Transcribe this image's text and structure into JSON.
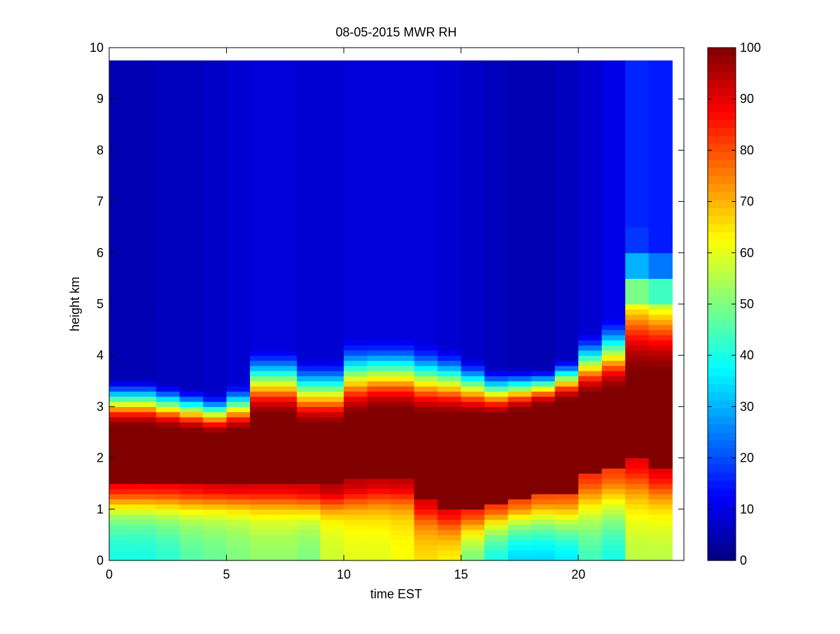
{
  "chart_data": {
    "type": "heatmap",
    "title": "08-05-2015 MWR RH",
    "xlabel": "time EST",
    "ylabel": "height km",
    "xlim": [
      0,
      24.5
    ],
    "ylim": [
      0,
      10
    ],
    "x_ticks": [
      0,
      5,
      10,
      15,
      20
    ],
    "y_ticks": [
      0,
      1,
      2,
      3,
      4,
      5,
      6,
      7,
      8,
      9,
      10
    ],
    "grid": false,
    "colormap": "jet",
    "colorbar": {
      "range": [
        0,
        100
      ],
      "ticks": [
        0,
        10,
        20,
        30,
        40,
        50,
        60,
        70,
        80,
        90,
        100
      ],
      "position": "right"
    },
    "time_hours": [
      0,
      1,
      2,
      3,
      4,
      5,
      6,
      7,
      8,
      9,
      10,
      11,
      12,
      13,
      14,
      15,
      16,
      17,
      18,
      19,
      20,
      21,
      22,
      23
    ],
    "height_km": [
      0.0,
      0.1,
      0.2,
      0.3,
      0.4,
      0.5,
      0.6,
      0.7,
      0.8,
      0.9,
      1.0,
      1.1,
      1.2,
      1.3,
      1.4,
      1.5,
      1.6,
      1.7,
      1.8,
      1.9,
      2.0,
      2.1,
      2.2,
      2.3,
      2.4,
      2.5,
      2.6,
      2.7,
      2.8,
      2.9,
      3.0,
      3.1,
      3.2,
      3.3,
      3.4,
      3.5,
      3.6,
      3.7,
      3.8,
      3.9,
      4.0,
      4.1,
      4.2,
      4.3,
      4.4,
      4.5,
      4.6,
      4.7,
      4.8,
      4.9,
      5.0,
      5.5,
      6.0,
      6.5,
      7.0,
      7.5,
      8.0,
      8.5,
      9.0,
      9.5
    ],
    "max_height_km": 9.75,
    "profiles": [
      {
        "time": 0,
        "surface": 40,
        "mid": 65,
        "lower_edge": 1.5,
        "upper_edge": 2.6,
        "decay_top": 3.6,
        "aloft": 5
      },
      {
        "time": 1,
        "surface": 40,
        "mid": 66,
        "lower_edge": 1.5,
        "upper_edge": 2.6,
        "decay_top": 3.6,
        "aloft": 5
      },
      {
        "time": 2,
        "surface": 42,
        "mid": 68,
        "lower_edge": 1.5,
        "upper_edge": 2.55,
        "decay_top": 3.5,
        "aloft": 6
      },
      {
        "time": 3,
        "surface": 46,
        "mid": 68,
        "lower_edge": 1.5,
        "upper_edge": 2.5,
        "decay_top": 3.4,
        "aloft": 6
      },
      {
        "time": 4,
        "surface": 48,
        "mid": 66,
        "lower_edge": 1.5,
        "upper_edge": 2.45,
        "decay_top": 3.3,
        "aloft": 7
      },
      {
        "time": 5,
        "surface": 50,
        "mid": 66,
        "lower_edge": 1.5,
        "upper_edge": 2.5,
        "decay_top": 3.5,
        "aloft": 8
      },
      {
        "time": 6,
        "surface": 52,
        "mid": 70,
        "lower_edge": 1.5,
        "upper_edge": 2.8,
        "decay_top": 4.2,
        "aloft": 9
      },
      {
        "time": 7,
        "surface": 52,
        "mid": 70,
        "lower_edge": 1.5,
        "upper_edge": 2.8,
        "decay_top": 4.2,
        "aloft": 9
      },
      {
        "time": 8,
        "surface": 50,
        "mid": 68,
        "lower_edge": 1.45,
        "upper_edge": 2.6,
        "decay_top": 4.0,
        "aloft": 8
      },
      {
        "time": 9,
        "surface": 58,
        "mid": 68,
        "lower_edge": 1.45,
        "upper_edge": 2.6,
        "decay_top": 4.0,
        "aloft": 8
      },
      {
        "time": 10,
        "surface": 60,
        "mid": 72,
        "lower_edge": 1.55,
        "upper_edge": 2.8,
        "decay_top": 4.4,
        "aloft": 9
      },
      {
        "time": 11,
        "surface": 60,
        "mid": 74,
        "lower_edge": 1.6,
        "upper_edge": 2.9,
        "decay_top": 4.4,
        "aloft": 9
      },
      {
        "time": 12,
        "surface": 62,
        "mid": 74,
        "lower_edge": 1.6,
        "upper_edge": 2.9,
        "decay_top": 4.4,
        "aloft": 9
      },
      {
        "time": 13,
        "surface": 66,
        "mid": 86,
        "lower_edge": 1.2,
        "upper_edge": 2.8,
        "decay_top": 4.3,
        "aloft": 9
      },
      {
        "time": 14,
        "surface": 64,
        "mid": 90,
        "lower_edge": 1.0,
        "upper_edge": 2.8,
        "decay_top": 4.2,
        "aloft": 8
      },
      {
        "time": 15,
        "surface": 50,
        "mid": 88,
        "lower_edge": 1.0,
        "upper_edge": 2.8,
        "decay_top": 4.0,
        "aloft": 7
      },
      {
        "time": 16,
        "surface": 40,
        "mid": 82,
        "lower_edge": 1.1,
        "upper_edge": 2.8,
        "decay_top": 3.8,
        "aloft": 6
      },
      {
        "time": 17,
        "surface": 34,
        "mid": 80,
        "lower_edge": 1.2,
        "upper_edge": 2.9,
        "decay_top": 3.8,
        "aloft": 5
      },
      {
        "time": 18,
        "surface": 34,
        "mid": 82,
        "lower_edge": 1.3,
        "upper_edge": 3.0,
        "decay_top": 3.8,
        "aloft": 5
      },
      {
        "time": 19,
        "surface": 36,
        "mid": 86,
        "lower_edge": 1.3,
        "upper_edge": 3.1,
        "decay_top": 4.0,
        "aloft": 6
      },
      {
        "time": 20,
        "surface": 44,
        "mid": 84,
        "lower_edge": 1.7,
        "upper_edge": 3.2,
        "decay_top": 4.5,
        "aloft": 8
      },
      {
        "time": 21,
        "surface": 40,
        "mid": 84,
        "lower_edge": 1.8,
        "upper_edge": 3.3,
        "decay_top": 4.8,
        "aloft": 10
      },
      {
        "time": 22,
        "surface": 56,
        "mid": 80,
        "lower_edge": 2.0,
        "upper_edge": 3.6,
        "decay_top": 6.5,
        "aloft": 16
      },
      {
        "time": 23,
        "surface": 56,
        "mid": 78,
        "lower_edge": 1.8,
        "upper_edge": 3.6,
        "decay_top": 6.3,
        "aloft": 15
      }
    ]
  }
}
